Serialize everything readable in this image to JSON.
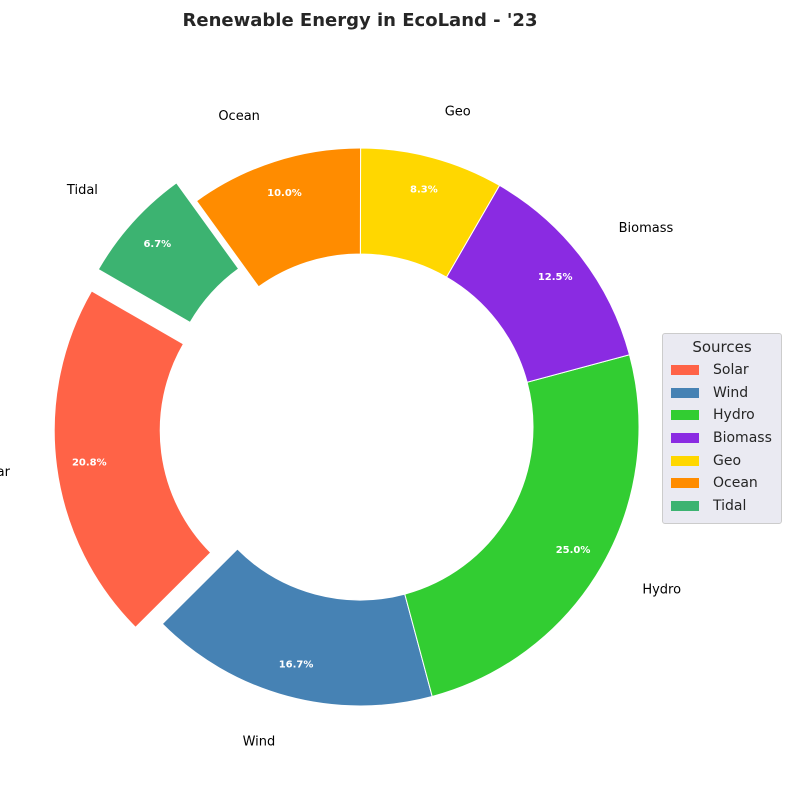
{
  "chart_data": {
    "type": "pie",
    "variant": "donut",
    "title": "Renewable Energy in EcoLand - '23",
    "categories": [
      "Solar",
      "Wind",
      "Hydro",
      "Biomass",
      "Geo",
      "Ocean",
      "Tidal"
    ],
    "values": [
      20.8,
      16.7,
      25.0,
      12.5,
      8.3,
      10.0,
      6.7
    ],
    "value_labels": [
      "20.8%",
      "16.7%",
      "25.0%",
      "12.5%",
      "8.3%",
      "10.0%",
      "6.7%"
    ],
    "colors": [
      "#ff6347",
      "#4682b4",
      "#32cd32",
      "#8a2be2",
      "#ffd700",
      "#ff8c00",
      "#3cb371"
    ],
    "exploded": [
      "Solar",
      "Tidal"
    ],
    "start_angle_deg": 150,
    "direction": "counterclockwise",
    "legend": {
      "title": "Sources",
      "placement": "right",
      "entries": [
        "Solar",
        "Wind",
        "Hydro",
        "Biomass",
        "Geo",
        "Ocean",
        "Tidal"
      ]
    }
  }
}
